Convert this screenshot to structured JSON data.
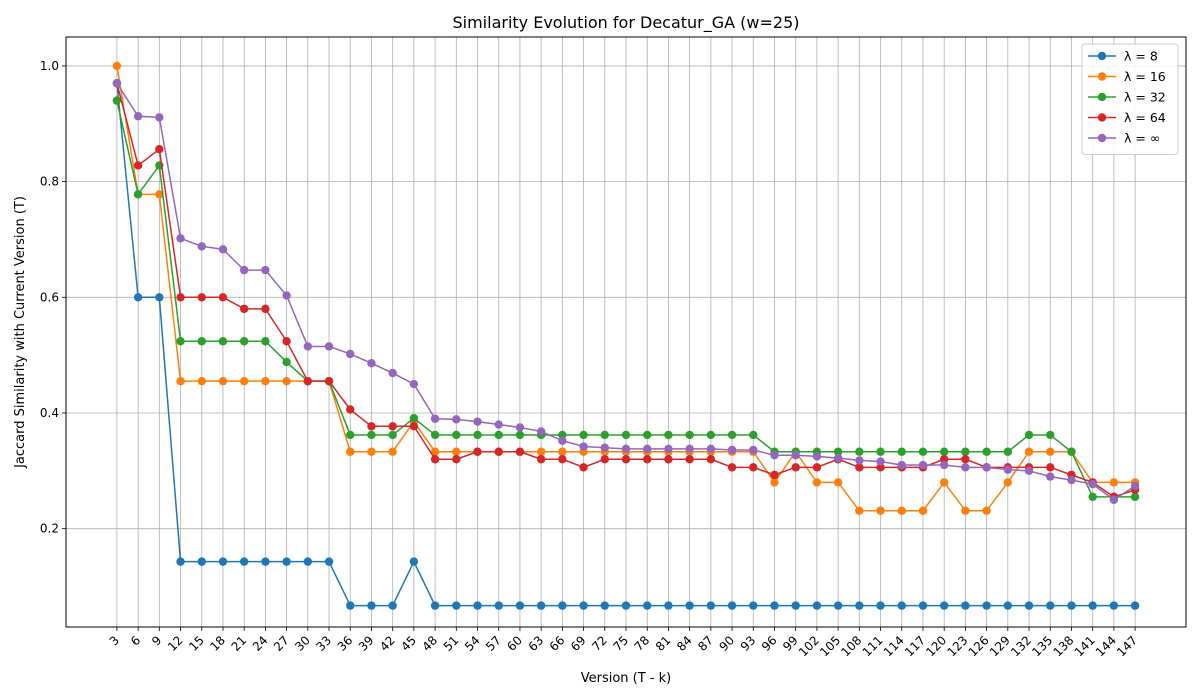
{
  "chart_data": {
    "type": "line",
    "title": "Similarity Evolution for Decatur_GA (w=25)",
    "xlabel": "Version (T - k)",
    "ylabel": "Jaccard Similarity with Current Version (T)",
    "x": [
      3,
      6,
      9,
      12,
      15,
      18,
      21,
      24,
      27,
      30,
      33,
      36,
      39,
      42,
      45,
      48,
      51,
      54,
      57,
      60,
      63,
      66,
      69,
      72,
      75,
      78,
      81,
      84,
      87,
      90,
      93,
      96,
      99,
      102,
      105,
      108,
      111,
      114,
      117,
      120,
      123,
      126,
      129,
      132,
      135,
      138,
      141,
      144,
      147
    ],
    "x_tick_labels": [
      "3",
      "6",
      "9",
      "12",
      "15",
      "18",
      "21",
      "24",
      "27",
      "30",
      "33",
      "36",
      "39",
      "42",
      "45",
      "48",
      "51",
      "54",
      "57",
      "60",
      "63",
      "66",
      "69",
      "72",
      "75",
      "78",
      "81",
      "84",
      "87",
      "90",
      "93",
      "96",
      "99",
      "102",
      "105",
      "108",
      "111",
      "114",
      "117",
      "120",
      "123",
      "126",
      "129",
      "132",
      "135",
      "138",
      "141",
      "144",
      "147"
    ],
    "ylim": [
      0.03,
      1.05
    ],
    "y_ticks": [
      0.2,
      0.4,
      0.6,
      0.8,
      1.0
    ],
    "y_tick_labels": [
      "0.2",
      "0.4",
      "0.6",
      "0.8",
      "1.0"
    ],
    "grid": true,
    "legend_position": "top-right",
    "series": [
      {
        "name": "λ = 8",
        "color": "#1f77b4",
        "values": [
          0.97,
          0.6,
          0.6,
          0.143,
          0.143,
          0.143,
          0.143,
          0.143,
          0.143,
          0.143,
          0.143,
          0.067,
          0.067,
          0.067,
          0.143,
          0.067,
          0.067,
          0.067,
          0.067,
          0.067,
          0.067,
          0.067,
          0.067,
          0.067,
          0.067,
          0.067,
          0.067,
          0.067,
          0.067,
          0.067,
          0.067,
          0.067,
          0.067,
          0.067,
          0.067,
          0.067,
          0.067,
          0.067,
          0.067,
          0.067,
          0.067,
          0.067,
          0.067,
          0.067,
          0.067,
          0.067,
          0.067,
          0.067,
          0.067
        ]
      },
      {
        "name": "λ = 16",
        "color": "#ff7f0e",
        "values": [
          1.0,
          0.778,
          0.778,
          0.455,
          0.455,
          0.455,
          0.455,
          0.455,
          0.455,
          0.455,
          0.455,
          0.333,
          0.333,
          0.333,
          0.385,
          0.333,
          0.333,
          0.333,
          0.333,
          0.333,
          0.333,
          0.333,
          0.333,
          0.333,
          0.333,
          0.333,
          0.333,
          0.333,
          0.333,
          0.333,
          0.333,
          0.28,
          0.333,
          0.28,
          0.28,
          0.231,
          0.231,
          0.231,
          0.231,
          0.28,
          0.231,
          0.231,
          0.28,
          0.333,
          0.333,
          0.333,
          0.28,
          0.28,
          0.28
        ]
      },
      {
        "name": "λ = 32",
        "color": "#2ca02c",
        "values": [
          0.94,
          0.778,
          0.828,
          0.524,
          0.524,
          0.524,
          0.524,
          0.524,
          0.488,
          0.455,
          0.455,
          0.362,
          0.362,
          0.362,
          0.391,
          0.362,
          0.362,
          0.362,
          0.362,
          0.362,
          0.362,
          0.362,
          0.362,
          0.362,
          0.362,
          0.362,
          0.362,
          0.362,
          0.362,
          0.362,
          0.362,
          0.333,
          0.333,
          0.333,
          0.333,
          0.333,
          0.333,
          0.333,
          0.333,
          0.333,
          0.333,
          0.333,
          0.333,
          0.362,
          0.362,
          0.333,
          0.255,
          0.255,
          0.255
        ]
      },
      {
        "name": "λ = 64",
        "color": "#d62728",
        "values": [
          0.97,
          0.828,
          0.856,
          0.6,
          0.6,
          0.6,
          0.58,
          0.58,
          0.524,
          0.455,
          0.455,
          0.406,
          0.377,
          0.377,
          0.377,
          0.32,
          0.32,
          0.333,
          0.333,
          0.333,
          0.32,
          0.32,
          0.306,
          0.32,
          0.32,
          0.32,
          0.32,
          0.32,
          0.32,
          0.306,
          0.306,
          0.293,
          0.306,
          0.306,
          0.32,
          0.306,
          0.306,
          0.306,
          0.306,
          0.32,
          0.32,
          0.306,
          0.306,
          0.306,
          0.306,
          0.293,
          0.28,
          0.255,
          0.267
        ]
      },
      {
        "name": "λ = ∞",
        "color": "#9467bd",
        "values": [
          0.97,
          0.913,
          0.911,
          0.702,
          0.688,
          0.683,
          0.647,
          0.647,
          0.603,
          0.515,
          0.515,
          0.502,
          0.486,
          0.469,
          0.45,
          0.39,
          0.389,
          0.385,
          0.38,
          0.375,
          0.368,
          0.352,
          0.342,
          0.34,
          0.338,
          0.338,
          0.338,
          0.338,
          0.338,
          0.336,
          0.336,
          0.327,
          0.327,
          0.325,
          0.322,
          0.318,
          0.316,
          0.31,
          0.31,
          0.31,
          0.306,
          0.306,
          0.302,
          0.3,
          0.29,
          0.284,
          0.277,
          0.25,
          0.274
        ]
      }
    ]
  }
}
